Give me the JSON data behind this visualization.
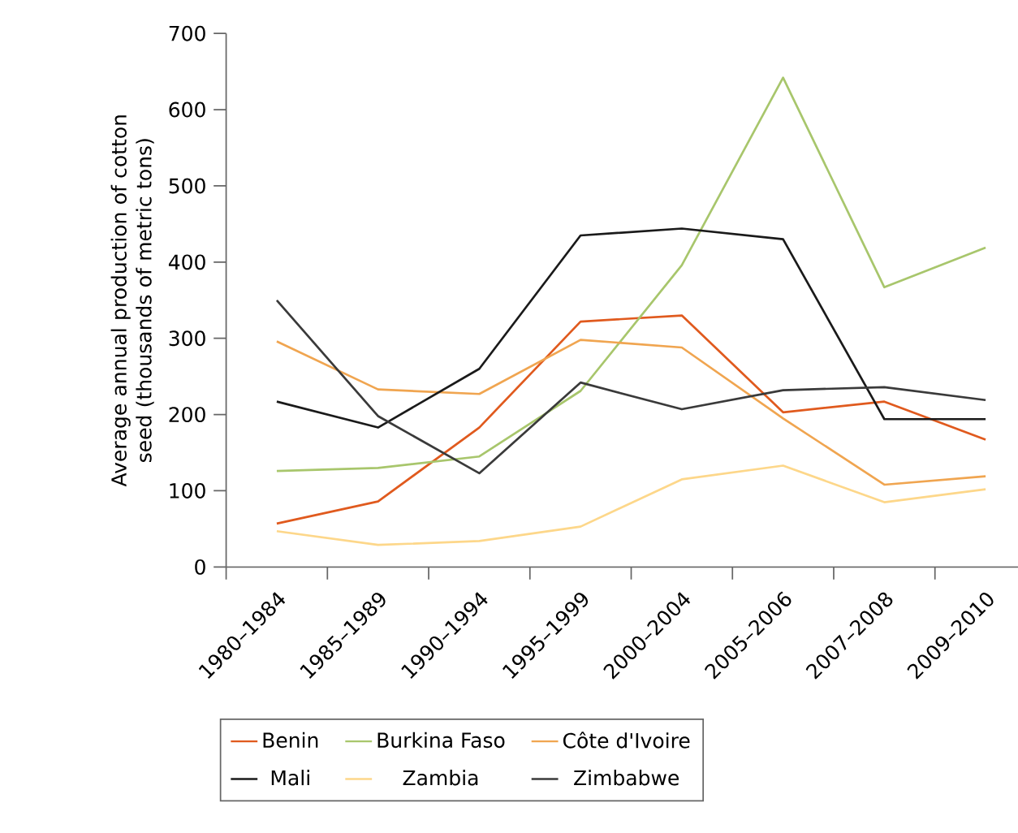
{
  "chart_data": {
    "type": "line",
    "ylabel": "Average annual production of cotton seed (thousands of metric tons)",
    "categories": [
      "1980–1984",
      "1985–1989",
      "1990–1994",
      "1995–1999",
      "2000–2004",
      "2005–2006",
      "2007–2008",
      "2009–2010"
    ],
    "series": [
      {
        "name": "Benin",
        "color": "#e05a1e",
        "values": [
          57,
          86,
          183,
          322,
          330,
          203,
          217,
          167
        ]
      },
      {
        "name": "Burkina Faso",
        "color": "#a8c66c",
        "values": [
          126,
          130,
          145,
          231,
          396,
          642,
          367,
          419
        ]
      },
      {
        "name": "Côte d'Ivoire",
        "color": "#f0a550",
        "values": [
          296,
          233,
          227,
          298,
          288,
          195,
          108,
          119
        ]
      },
      {
        "name": "Mali",
        "color": "#1a1a1a",
        "values": [
          217,
          183,
          260,
          435,
          444,
          430,
          194,
          194
        ]
      },
      {
        "name": "Zambia",
        "color": "#fdd78a",
        "values": [
          47,
          29,
          34,
          53,
          115,
          133,
          85,
          102
        ]
      },
      {
        "name": "Zimbabwe",
        "color": "#3a3a3a",
        "values": [
          350,
          198,
          123,
          242,
          207,
          232,
          236,
          219
        ]
      }
    ],
    "ylim": [
      0,
      700
    ],
    "yticks": [
      0,
      100,
      200,
      300,
      400,
      500,
      600,
      700
    ],
    "grid": false,
    "legend": "bottom"
  }
}
